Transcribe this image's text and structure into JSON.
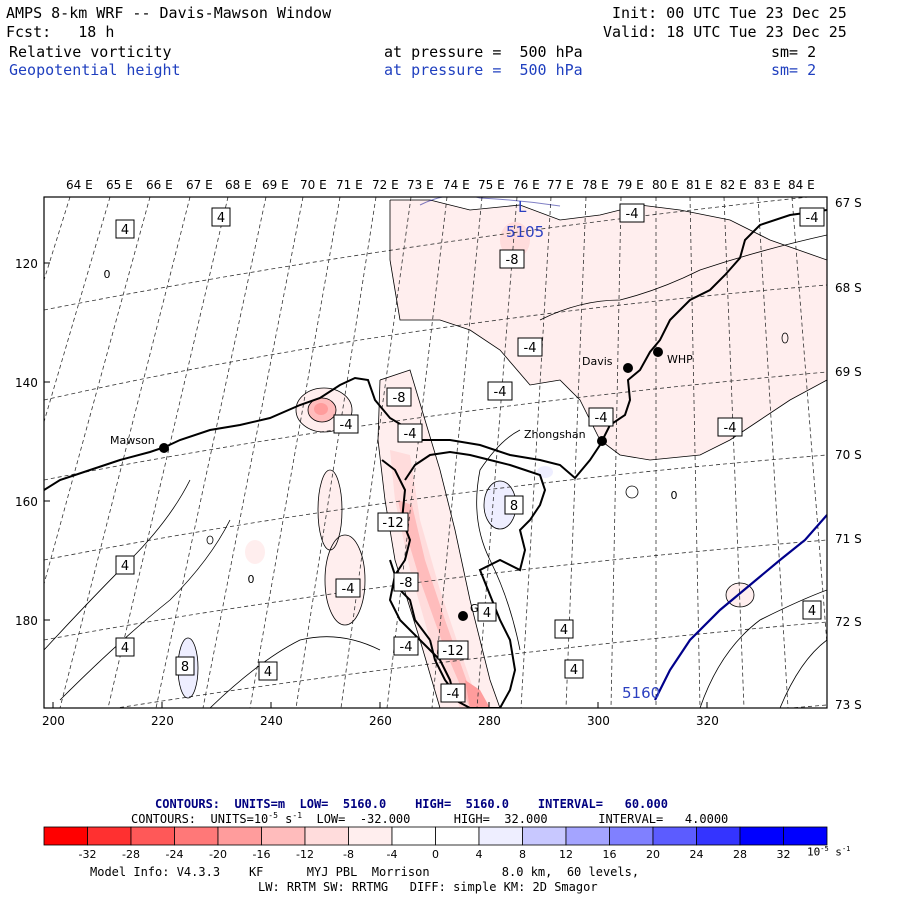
{
  "header": {
    "title": "AMPS 8-km WRF -- Davis-Mawson Window",
    "init": "Init: 00 UTC Tue 23 Dec 25",
    "fcst": "Fcst:   18 h",
    "valid": "Valid: 18 UTC Tue 23 Dec 25",
    "field1": "Relative vorticity",
    "field1_level": "at pressure =  500 hPa",
    "field1_sm": "sm= 2",
    "field2": "Geopotential height",
    "field2_level": "at pressure =  500 hPa",
    "field2_sm": "sm= 2"
  },
  "map": {
    "top_lon_labels": [
      "64 E",
      "65 E",
      "66 E",
      "67 E",
      "68 E",
      "69 E",
      "70 E",
      "71 E",
      "72 E",
      "73 E",
      "74 E",
      "75 E",
      "76 E",
      "77 E",
      "78 E",
      "79 E",
      "80 E",
      "81 E",
      "82 E",
      "83 E",
      "84 E"
    ],
    "right_lat_labels": [
      "67 S",
      "68 S",
      "69 S",
      "70 S",
      "71 S",
      "72 S",
      "73 S"
    ],
    "left_y_labels": [
      "120",
      "140",
      "160",
      "180"
    ],
    "bottom_x_labels": [
      "200",
      "220",
      "240",
      "260",
      "280",
      "300",
      "320"
    ],
    "stations": [
      {
        "name": "Mawson",
        "id": "station-mawson"
      },
      {
        "name": "Davis",
        "id": "station-davis"
      },
      {
        "name": "WHP",
        "id": "station-whp"
      },
      {
        "name": "Zhongshan",
        "id": "station-zhongshan"
      },
      {
        "name": "GG",
        "id": "station-gg"
      }
    ],
    "height_labels": {
      "low": "L",
      "low_value": "5105",
      "contour": "5160"
    },
    "vorticity_labels": [
      "-4",
      "4",
      "-8",
      "-4",
      "-4",
      "-8",
      "-4",
      "-4",
      "-4",
      "-4",
      "8",
      "4",
      "-12",
      "-8",
      "-4",
      "4",
      "-4",
      "-4",
      "-12",
      "-4",
      "4",
      "8",
      "4",
      "4",
      "4",
      "4",
      "4",
      "0",
      "0",
      "0"
    ]
  },
  "footer": {
    "contours1": "CONTOURS:  UNITS=m  LOW=  5160.0    HIGH=  5160.0    INTERVAL=   60.000",
    "contours2": "CONTOURS:  UNITS=10",
    "contours2_exp": "-5",
    "contours2_rest": " s",
    "contours2_exp2": "-1",
    "contours2_tail": "  LOW=  -32.000      HIGH=  32.000       INTERVAL=   4.0000",
    "colorbar_labels": [
      "-32",
      "-28",
      "-24",
      "-20",
      "-16",
      "-12",
      "-8",
      "-4",
      "0",
      "4",
      "8",
      "12",
      "16",
      "20",
      "24",
      "28",
      "32"
    ],
    "colorbar_unit": "10",
    "colorbar_unit_exp": "-5",
    "colorbar_unit_s": " s",
    "colorbar_unit_exp2": "-1",
    "model_info": "Model Info: V4.3.3    KF      MYJ PBL  Morrison          8.0 km,  60 levels,",
    "model_info2": "LW: RRTM SW: RRTMG   DIFF: simple KM: 2D Smagor",
    "colors": [
      "#ff0000",
      "#ff3030",
      "#ff5858",
      "#ff7878",
      "#ff9c9c",
      "#ffbcbc",
      "#ffdcdc",
      "#ffeeee",
      "#ffffff",
      "#ffffff",
      "#eeeeff",
      "#c8c8ff",
      "#a4a4ff",
      "#8080ff",
      "#5c5cff",
      "#3434ff",
      "#0000ff"
    ]
  }
}
